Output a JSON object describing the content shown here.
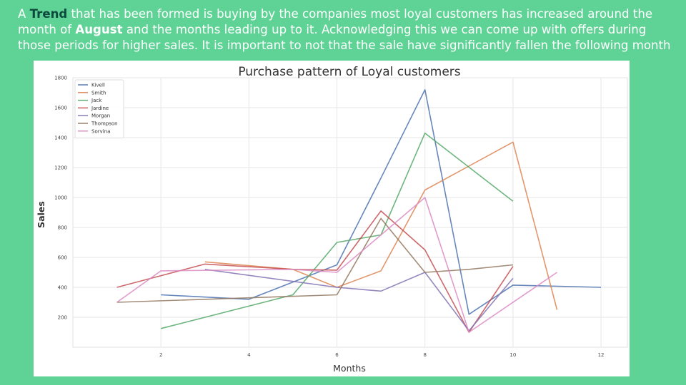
{
  "caption": {
    "p1": "A ",
    "trend": "Trend",
    "p2": " that has been formed is buying by the companies most loyal customers has increased around the month of ",
    "august": "August",
    "p3": " and the months leading up to it. Acknowledging this we can come up with offers during those periods for higher sales. It is important to not that the sale have significantly fallen the following month"
  },
  "chart_data": {
    "type": "line",
    "title": "Purchase pattern of Loyal customers",
    "xlabel": "Months",
    "ylabel": "Sales",
    "xlim": [
      0,
      12.6
    ],
    "ylim": [
      0,
      1800
    ],
    "xticks": [
      2,
      4,
      6,
      8,
      10,
      12
    ],
    "yticks": [
      200,
      400,
      600,
      800,
      1000,
      1200,
      1400,
      1600,
      1800
    ],
    "grid": true,
    "legend_position": "top-left",
    "series": [
      {
        "name": "Kivell",
        "color": "#4c72b0",
        "x": [
          2,
          4,
          6,
          7,
          8,
          9,
          10,
          12
        ],
        "y": [
          350,
          320,
          550,
          1130,
          1720,
          220,
          415,
          400
        ]
      },
      {
        "name": "Smith",
        "color": "#dd8452",
        "x": [
          3,
          5,
          6,
          7,
          8,
          10,
          11
        ],
        "y": [
          570,
          520,
          400,
          510,
          1050,
          1370,
          250
        ]
      },
      {
        "name": "Jack",
        "color": "#55a868",
        "x": [
          2,
          5,
          6,
          7,
          8,
          10
        ],
        "y": [
          125,
          350,
          700,
          750,
          1430,
          975
        ]
      },
      {
        "name": "Jardine",
        "color": "#c44e52",
        "x": [
          1,
          3,
          5,
          6,
          7,
          8,
          9,
          10
        ],
        "y": [
          400,
          555,
          520,
          515,
          910,
          650,
          100,
          540
        ]
      },
      {
        "name": "Morgan",
        "color": "#8172b3",
        "x": [
          3,
          6,
          7,
          8,
          9,
          10
        ],
        "y": [
          520,
          400,
          375,
          500,
          110,
          460
        ]
      },
      {
        "name": "Thompson",
        "color": "#937860",
        "x": [
          1,
          6,
          7,
          8,
          9,
          10
        ],
        "y": [
          300,
          350,
          860,
          500,
          520,
          550
        ]
      },
      {
        "name": "Sorvina",
        "color": "#da8bc3",
        "x": [
          1,
          2,
          5,
          6,
          8,
          9,
          11
        ],
        "y": [
          300,
          510,
          520,
          500,
          1000,
          100,
          500
        ]
      }
    ]
  }
}
